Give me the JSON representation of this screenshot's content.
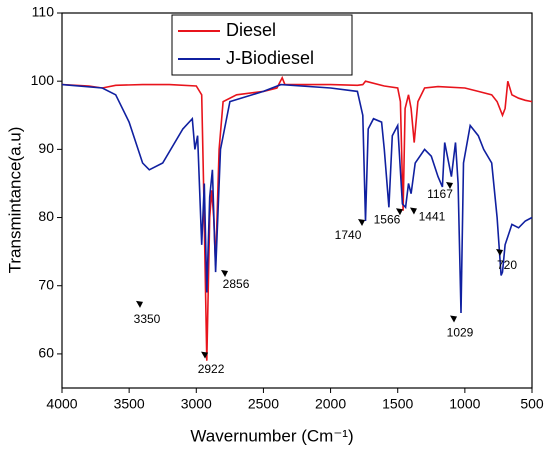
{
  "chart_data": {
    "type": "line",
    "xlabel": "Wavernumber (Cm⁻¹)",
    "ylabel": "Transmintance(a.u)",
    "xlim": [
      4000,
      500
    ],
    "xticks": [
      4000,
      3500,
      3000,
      2500,
      2000,
      1500,
      1000,
      500
    ],
    "ylim": [
      55,
      110
    ],
    "yticks": [
      60,
      70,
      80,
      90,
      100,
      110
    ],
    "legend": "upper center",
    "series": [
      {
        "name": "Diesel",
        "color": "#e8141c",
        "x": [
          4000,
          3800,
          3700,
          3600,
          3400,
          3200,
          3000,
          2960,
          2945,
          2922,
          2900,
          2885,
          2870,
          2856,
          2830,
          2800,
          2700,
          2500,
          2400,
          2360,
          2340,
          2200,
          2000,
          1800,
          1760,
          1740,
          1600,
          1500,
          1480,
          1460,
          1445,
          1420,
          1400,
          1377,
          1350,
          1300,
          1200,
          1000,
          900,
          800,
          760,
          720,
          700,
          680,
          650,
          600,
          550,
          500
        ],
        "y": [
          99.5,
          99.3,
          99,
          99.4,
          99.5,
          99.5,
          99.3,
          98,
          84,
          59,
          80,
          84,
          80,
          73,
          90,
          97,
          98,
          98.5,
          99,
          100.5,
          99.5,
          99.5,
          99.5,
          99.4,
          99.5,
          100,
          99.3,
          99,
          97,
          81,
          96,
          98,
          96,
          91,
          97,
          99,
          99.2,
          99,
          98.5,
          98,
          97,
          95,
          96,
          100,
          98,
          97.5,
          97.2,
          97
        ]
      },
      {
        "name": "J-Biodiesel",
        "color": "#1020a0",
        "x": [
          4000,
          3700,
          3600,
          3500,
          3400,
          3350,
          3250,
          3100,
          3030,
          3010,
          2990,
          2960,
          2940,
          2922,
          2900,
          2880,
          2856,
          2820,
          2750,
          2500,
          2370,
          2000,
          1800,
          1760,
          1740,
          1720,
          1680,
          1620,
          1600,
          1566,
          1540,
          1500,
          1465,
          1441,
          1420,
          1400,
          1370,
          1300,
          1250,
          1200,
          1167,
          1150,
          1100,
          1070,
          1050,
          1029,
          1010,
          960,
          900,
          860,
          800,
          760,
          730,
          720,
          700,
          650,
          600,
          550,
          500
        ],
        "y": [
          99.5,
          99,
          98,
          94,
          88,
          87,
          88,
          93,
          94.5,
          90,
          92,
          76,
          85,
          69,
          83,
          87,
          72,
          90,
          97,
          98.5,
          99.5,
          99,
          98.5,
          95,
          79.5,
          93,
          94.5,
          94,
          90,
          81.5,
          92,
          93.5,
          82,
          81.5,
          85,
          83.5,
          88,
          90,
          89,
          86,
          84.5,
          91,
          86,
          91,
          85,
          66,
          88,
          93.5,
          92,
          90,
          88,
          80,
          71.5,
          72,
          76,
          79,
          78.5,
          79.5,
          80
        ]
      }
    ],
    "annotations": [
      {
        "text": "2922",
        "x": 2890,
        "y": 57.7
      },
      {
        "text": "2856",
        "x": 2704,
        "y": 70.1
      },
      {
        "text": "3350",
        "x": 3367,
        "y": 65
      },
      {
        "text": "1740",
        "x": 1870,
        "y": 77.3
      },
      {
        "text": "1566",
        "x": 1580,
        "y": 79.6
      },
      {
        "text": "1441",
        "x": 1245,
        "y": 80
      },
      {
        "text": "1167",
        "x": 1185,
        "y": 83.3
      },
      {
        "text": "1029",
        "x": 1036,
        "y": 63
      },
      {
        "text": "720",
        "x": 686,
        "y": 72.9
      }
    ]
  }
}
